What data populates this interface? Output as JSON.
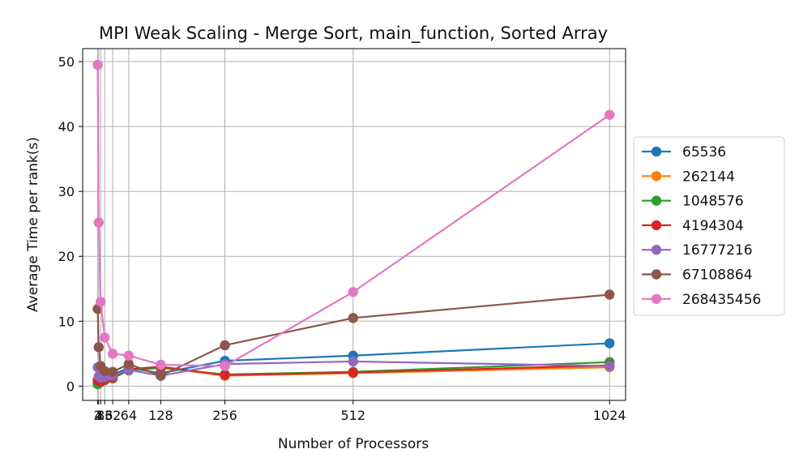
{
  "chart_data": {
    "type": "line",
    "title": "MPI Weak Scaling - Merge Sort, main_function, Sorted Array",
    "xlabel": "Number of Processors",
    "ylabel": "Average Time per rank(s)",
    "xlim": [
      -28,
      1056
    ],
    "ylim": [
      -2.2,
      52
    ],
    "xticks": [
      2,
      4,
      8,
      16,
      32,
      64,
      128,
      256,
      512,
      1024
    ],
    "xtick_labels": [
      "2",
      "4",
      "8",
      "16",
      "32",
      "64",
      "128",
      "256",
      "512",
      "1024"
    ],
    "yticks": [
      0,
      10,
      20,
      30,
      40,
      50
    ],
    "grid": true,
    "legend_position": "outside-right",
    "markers": "circle",
    "x": [
      2,
      4,
      8,
      16,
      32,
      64,
      128,
      256,
      512,
      1024
    ],
    "series": [
      {
        "name": "65536",
        "color": "#1f77b4",
        "values": [
          0.8,
          1.0,
          1.2,
          1.5,
          1.8,
          2.8,
          2.0,
          3.9,
          4.7,
          6.6
        ]
      },
      {
        "name": "262144",
        "color": "#ff7f0e",
        "values": [
          0.5,
          0.6,
          0.8,
          1.0,
          1.2,
          2.6,
          2.9,
          1.6,
          2.0,
          2.9
        ]
      },
      {
        "name": "1048576",
        "color": "#2ca02c",
        "values": [
          0.3,
          0.4,
          0.6,
          0.9,
          1.2,
          2.4,
          2.8,
          1.8,
          2.2,
          3.7
        ]
      },
      {
        "name": "4194304",
        "color": "#d62728",
        "values": [
          0.9,
          0.8,
          0.7,
          1.0,
          1.3,
          2.6,
          3.0,
          1.7,
          2.1,
          3.2
        ]
      },
      {
        "name": "16777216",
        "color": "#9467bd",
        "values": [
          2.9,
          1.5,
          1.3,
          1.4,
          1.6,
          2.5,
          1.6,
          3.4,
          3.8,
          3.1
        ]
      },
      {
        "name": "67108864",
        "color": "#8c564b",
        "values": [
          11.9,
          6.0,
          3.1,
          2.3,
          2.2,
          3.4,
          1.6,
          6.3,
          10.5,
          14.1
        ]
      },
      {
        "name": "268435456",
        "color": "#e377c2",
        "values": [
          49.5,
          25.2,
          13.0,
          7.5,
          5.0,
          4.7,
          3.3,
          3.1,
          14.5,
          41.8
        ]
      }
    ]
  }
}
